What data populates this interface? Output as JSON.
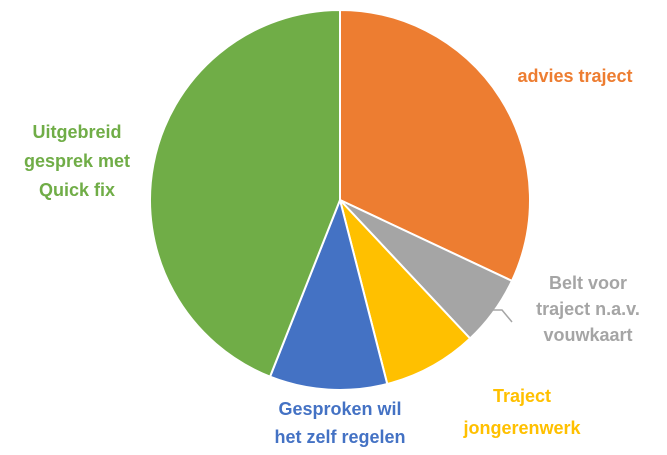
{
  "chart_data": {
    "type": "pie",
    "title": "",
    "slices": [
      {
        "label": "advies traject",
        "label_lines": [
          "advies traject"
        ],
        "value": 32,
        "color": "#ED7D31"
      },
      {
        "label": "Belt voor traject n.a.v. vouwkaart",
        "label_lines": [
          "Belt voor",
          "traject n.a.v.",
          "vouwkaart"
        ],
        "value": 6,
        "color": "#A5A5A5"
      },
      {
        "label": "Traject jongerenwerk",
        "label_lines": [
          "Traject",
          "jongerenwerk"
        ],
        "value": 8,
        "color": "#FFC000"
      },
      {
        "label": "Gesproken wil het zelf regelen",
        "label_lines": [
          "Gesproken wil",
          "het zelf regelen"
        ],
        "value": 10,
        "color": "#4472C4"
      },
      {
        "label": "Uitgebreid gesprek met Quick fix",
        "label_lines": [
          "Uitgebreid",
          "gesprek met",
          "Quick fix"
        ],
        "value": 44,
        "color": "#70AD47"
      }
    ],
    "start_angle": "12 o'clock",
    "direction": "clockwise",
    "legend": "none (data labels beside slices)"
  }
}
